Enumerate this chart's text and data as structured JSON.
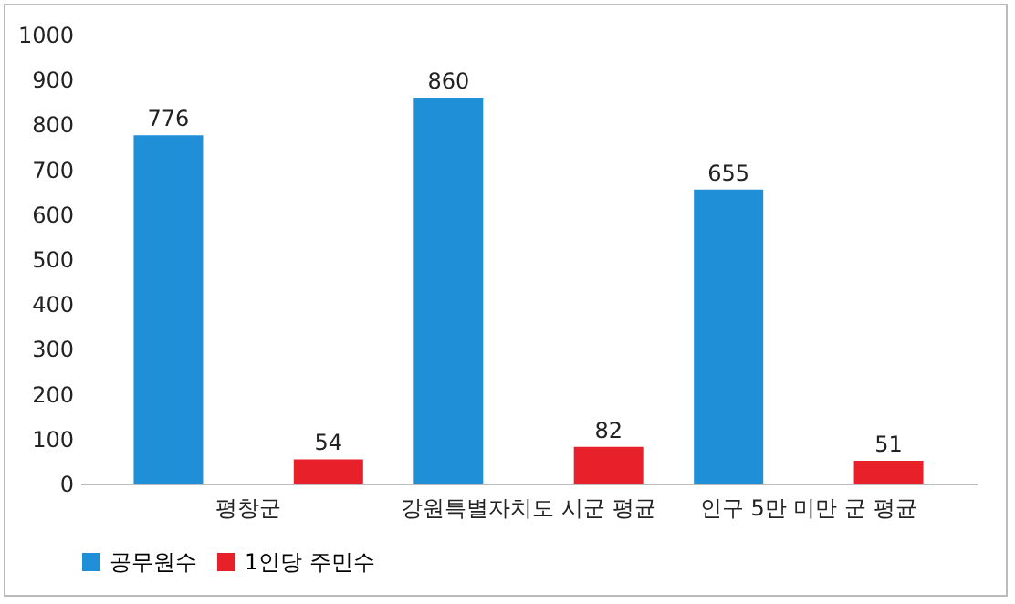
{
  "chart_data": {
    "type": "bar",
    "categories": [
      "평창군",
      "강원특별자치도 시군 평균",
      "인구 5만 미만 군 평균"
    ],
    "series": [
      {
        "name": "공무원수",
        "color": "#1f8fd8",
        "values": [
          776,
          860,
          655
        ]
      },
      {
        "name": "1인당 주민수",
        "color": "#e8202a",
        "values": [
          54,
          82,
          51
        ]
      }
    ],
    "ylim": [
      0,
      1000
    ],
    "yticks": [
      0,
      100,
      200,
      300,
      400,
      500,
      600,
      700,
      800,
      900,
      1000
    ],
    "grid": false,
    "legend": "bottom",
    "data_labels": true
  }
}
